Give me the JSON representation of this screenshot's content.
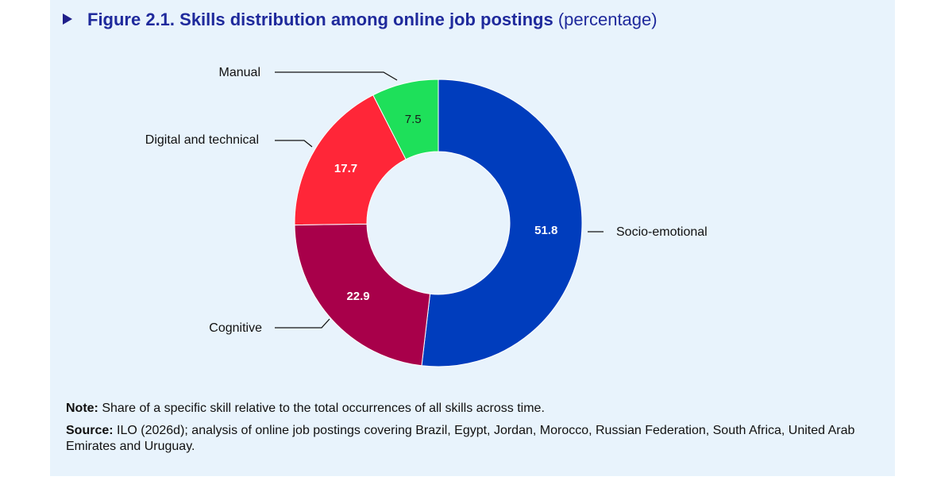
{
  "header": {
    "title": "Figure 2.1. Skills distribution among online job postings",
    "subtitle": "(percentage)"
  },
  "chart_data": {
    "type": "pie",
    "donut": true,
    "categories": [
      "Socio-emotional",
      "Cognitive",
      "Digital and technical",
      "Manual"
    ],
    "values": [
      51.8,
      22.9,
      17.7,
      7.5
    ],
    "data_labels": [
      "51.8",
      "22.9",
      "17.7",
      "7.5"
    ],
    "colors": [
      "#003dbd",
      "#a8004a",
      "#ff2638",
      "#1ee05a"
    ],
    "label_colors": [
      "#ffffff",
      "#ffffff",
      "#ffffff",
      "#1a1a1a"
    ],
    "legend": "callout labels"
  },
  "notes": {
    "note_label": "Note:",
    "note_text": " Share of a specific skill relative to the total occurrences of all skills across time.",
    "source_label": "Source:",
    "source_text": " ILO (2026d); analysis of online job postings covering Brazil, Egypt, Jordan, Morocco, Russian Federation, South Africa, United Arab Emirates and Uruguay."
  }
}
